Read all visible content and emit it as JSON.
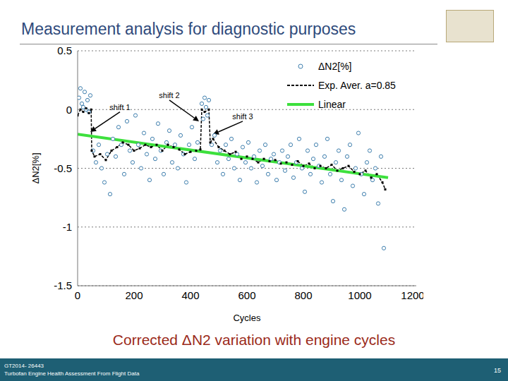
{
  "slide": {
    "title": "Measurement analysis for diagnostic purposes",
    "caption": "Corrected ΔN2 variation with engine cycles",
    "footer": [
      "GT2014- 26443",
      "Turbofan Engine Health Assessment From Flight Data"
    ],
    "page": "15"
  },
  "chart_data": {
    "type": "scatter",
    "x_label": "Cycles",
    "y_label": "ΔN2[%]",
    "xlim": [
      0,
      1200
    ],
    "xticks": [
      0,
      200,
      400,
      600,
      800,
      1000,
      1200
    ],
    "ylim": [
      -1.5,
      0.5
    ],
    "yticks": [
      -1.5,
      -1,
      -0.5,
      0,
      0.5
    ],
    "grid": true,
    "legend": "upper right",
    "annotations": [
      {
        "text": "shift 1",
        "x": 150,
        "y": -0.02,
        "target_x": 45,
        "target_y": -0.19
      },
      {
        "text": "shift 2",
        "x": 325,
        "y": 0.08,
        "target_x": 430,
        "target_y": -0.1
      },
      {
        "text": "shift 3",
        "x": 585,
        "y": -0.1,
        "target_x": 480,
        "target_y": -0.21
      }
    ],
    "series": [
      {
        "name": "ΔN2[%]",
        "type": "scatter",
        "marker": "open_circle",
        "color": "#3f7fae",
        "x": [
          5,
          10,
          15,
          20,
          25,
          30,
          35,
          40,
          45,
          55,
          65,
          75,
          85,
          95,
          105,
          115,
          125,
          135,
          145,
          155,
          165,
          175,
          185,
          195,
          205,
          215,
          225,
          235,
          245,
          255,
          265,
          275,
          285,
          295,
          305,
          315,
          325,
          335,
          345,
          355,
          365,
          375,
          385,
          395,
          405,
          415,
          425,
          440,
          445,
          450,
          455,
          460,
          465,
          475,
          485,
          495,
          505,
          515,
          525,
          535,
          545,
          555,
          565,
          575,
          585,
          595,
          605,
          615,
          625,
          635,
          645,
          655,
          665,
          675,
          685,
          695,
          705,
          715,
          725,
          735,
          745,
          755,
          765,
          775,
          785,
          795,
          805,
          815,
          825,
          835,
          845,
          855,
          865,
          875,
          885,
          895,
          905,
          915,
          925,
          935,
          945,
          955,
          965,
          975,
          985,
          995,
          1005,
          1015,
          1025,
          1035,
          1045,
          1055,
          1065,
          1075,
          1085
        ],
        "values": [
          0.1,
          0.18,
          0.05,
          0.02,
          0.15,
          0.0,
          0.08,
          -0.02,
          0.12,
          -0.35,
          -0.45,
          -0.3,
          -0.5,
          -0.62,
          -0.38,
          -0.72,
          -0.25,
          -0.4,
          -0.15,
          -0.3,
          -0.55,
          -0.1,
          -0.35,
          -0.45,
          -0.05,
          -0.3,
          -0.5,
          -0.2,
          -0.38,
          -0.6,
          -0.25,
          -0.42,
          -0.12,
          -0.35,
          -0.55,
          -0.28,
          -0.18,
          -0.45,
          -0.3,
          -0.5,
          -0.22,
          -0.38,
          -0.62,
          -0.3,
          -0.15,
          -0.42,
          -0.28,
          0.05,
          -0.08,
          0.1,
          0.02,
          -0.05,
          0.08,
          -0.3,
          -0.22,
          -0.45,
          -0.35,
          -0.55,
          -0.3,
          -0.42,
          -0.25,
          -0.5,
          -0.38,
          -0.6,
          -0.32,
          -0.45,
          -0.28,
          -0.5,
          -0.4,
          -0.62,
          -0.35,
          -0.48,
          -0.3,
          -0.55,
          -0.42,
          -0.38,
          -0.6,
          -0.45,
          -0.35,
          -0.52,
          -0.4,
          -0.3,
          -0.58,
          -0.45,
          -0.25,
          -0.5,
          -0.7,
          -0.35,
          -0.55,
          -0.42,
          -0.3,
          -0.48,
          -0.62,
          -0.4,
          -0.25,
          -0.55,
          -0.78,
          -0.45,
          -0.35,
          -0.6,
          -0.85,
          -0.4,
          -0.3,
          -0.65,
          -0.5,
          -0.2,
          -0.55,
          -0.72,
          -0.45,
          -0.35,
          -0.6,
          -0.5,
          -0.8,
          -0.4,
          -1.18
        ]
      },
      {
        "name": "Exp. Aver. a=0.85",
        "type": "line",
        "line_style": "dashed",
        "marker": "square",
        "color": "#000000",
        "x": [
          0,
          10,
          20,
          30,
          40,
          48,
          50,
          60,
          80,
          100,
          120,
          140,
          160,
          180,
          200,
          220,
          240,
          260,
          280,
          300,
          320,
          340,
          360,
          380,
          400,
          420,
          435,
          440,
          450,
          465,
          470,
          480,
          500,
          520,
          540,
          560,
          580,
          600,
          620,
          640,
          660,
          680,
          700,
          720,
          740,
          760,
          780,
          800,
          820,
          840,
          860,
          880,
          900,
          920,
          940,
          960,
          980,
          1000,
          1020,
          1040,
          1060,
          1080,
          1090
        ],
        "values": [
          -0.05,
          0.0,
          -0.02,
          0.01,
          -0.03,
          0.0,
          -0.35,
          -0.4,
          -0.38,
          -0.43,
          -0.35,
          -0.32,
          -0.28,
          -0.3,
          -0.35,
          -0.33,
          -0.3,
          -0.32,
          -0.3,
          -0.35,
          -0.3,
          -0.32,
          -0.34,
          -0.38,
          -0.36,
          -0.35,
          -0.34,
          0.0,
          -0.02,
          0.0,
          -0.28,
          -0.25,
          -0.32,
          -0.35,
          -0.38,
          -0.36,
          -0.42,
          -0.4,
          -0.42,
          -0.45,
          -0.42,
          -0.44,
          -0.43,
          -0.46,
          -0.45,
          -0.47,
          -0.44,
          -0.48,
          -0.46,
          -0.5,
          -0.48,
          -0.5,
          -0.47,
          -0.52,
          -0.5,
          -0.48,
          -0.53,
          -0.55,
          -0.52,
          -0.58,
          -0.55,
          -0.62,
          -0.68
        ]
      },
      {
        "name": "Linear",
        "type": "line",
        "line_style": "solid",
        "color": "#3de03d",
        "x": [
          0,
          1100
        ],
        "values": [
          -0.21,
          -0.58
        ]
      }
    ]
  }
}
